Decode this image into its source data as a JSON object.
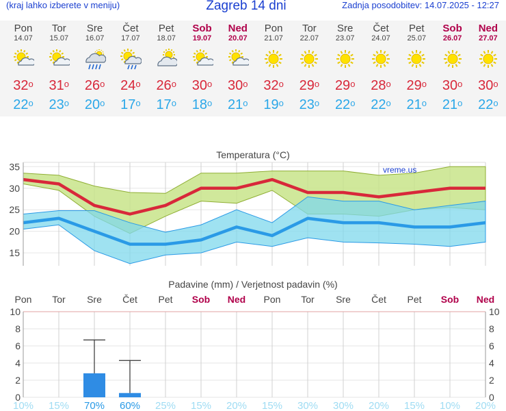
{
  "header": {
    "menu_hint": "(kraj lahko izberete v meniju)",
    "title": "Zagreb 14 dni",
    "last_update": "Zadnja posodobitev: 14.07.2025 - 12:27"
  },
  "days": [
    {
      "name": "Pon",
      "date": "14.07",
      "weekend": false,
      "icon": "sun-cloud-icon",
      "tmax": "32",
      "tmin": "22"
    },
    {
      "name": "Tor",
      "date": "15.07",
      "weekend": false,
      "icon": "sun-cloud-icon",
      "tmax": "31",
      "tmin": "23"
    },
    {
      "name": "Sre",
      "date": "16.07",
      "weekend": false,
      "icon": "rain-cloud-icon",
      "tmax": "26",
      "tmin": "20"
    },
    {
      "name": "Čet",
      "date": "17.07",
      "weekend": false,
      "icon": "sun-rain-cloud-icon",
      "tmax": "24",
      "tmin": "17"
    },
    {
      "name": "Pet",
      "date": "18.07",
      "weekend": false,
      "icon": "cloud-sun-icon",
      "tmax": "26",
      "tmin": "17"
    },
    {
      "name": "Sob",
      "date": "19.07",
      "weekend": true,
      "icon": "sun-cloud-icon",
      "tmax": "30",
      "tmin": "18"
    },
    {
      "name": "Ned",
      "date": "20.07",
      "weekend": true,
      "icon": "sun-cloud-icon",
      "tmax": "30",
      "tmin": "21"
    },
    {
      "name": "Pon",
      "date": "21.07",
      "weekend": false,
      "icon": "sun-icon",
      "tmax": "32",
      "tmin": "19"
    },
    {
      "name": "Tor",
      "date": "22.07",
      "weekend": false,
      "icon": "sun-icon",
      "tmax": "29",
      "tmin": "23"
    },
    {
      "name": "Sre",
      "date": "23.07",
      "weekend": false,
      "icon": "sun-icon",
      "tmax": "29",
      "tmin": "22"
    },
    {
      "name": "Čet",
      "date": "24.07",
      "weekend": false,
      "icon": "sun-icon",
      "tmax": "28",
      "tmin": "22"
    },
    {
      "name": "Pet",
      "date": "25.07",
      "weekend": false,
      "icon": "sun-icon",
      "tmax": "29",
      "tmin": "21"
    },
    {
      "name": "Sob",
      "date": "26.07",
      "weekend": true,
      "icon": "sun-icon",
      "tmax": "30",
      "tmin": "21"
    },
    {
      "name": "Ned",
      "date": "27.07",
      "weekend": true,
      "icon": "sun-icon",
      "tmax": "30",
      "tmin": "22"
    }
  ],
  "colors": {
    "weekend": "#b0004a",
    "tmax_line": "#d8283a",
    "tmin_line": "#2a9ae6",
    "max_band": "#c8e48a",
    "min_band": "#7fd8ec",
    "overlap_band": "#6ecf78",
    "precip_bar": "#2f8ce4",
    "precip_text": "#2a9ae6",
    "precip_text_faint": "#9fdcf3"
  },
  "chart_data": [
    {
      "type": "line",
      "title": "Temperatura (°C)",
      "watermark": "vreme.us",
      "x": [
        "Pon",
        "Tor",
        "Sre",
        "Čet",
        "Pet",
        "Sob",
        "Ned",
        "Pon",
        "Tor",
        "Sre",
        "Čet",
        "Pet",
        "Sob",
        "Ned"
      ],
      "ylim": [
        12,
        36
      ],
      "yticks": [
        15,
        20,
        25,
        30,
        35
      ],
      "series": [
        {
          "key": "tmax",
          "values": [
            32,
            31,
            26,
            24,
            26,
            30,
            30,
            32,
            29,
            29,
            28,
            29,
            30,
            30
          ]
        },
        {
          "key": "tmin",
          "values": [
            22,
            23,
            20,
            17,
            17,
            18,
            21,
            19,
            23,
            22,
            22,
            21,
            21,
            22
          ]
        }
      ],
      "bands": {
        "max_upper": [
          33.5,
          33,
          30.5,
          29,
          28.8,
          33.5,
          33.5,
          34,
          34,
          34,
          33,
          33.5,
          35,
          35
        ],
        "max_lower": [
          31,
          29.5,
          23.5,
          19.5,
          23.5,
          27,
          26.5,
          29.5,
          24,
          24,
          23.5,
          25,
          25.5,
          25
        ],
        "min_upper": [
          24,
          24.8,
          24.8,
          22,
          19.8,
          21.5,
          25,
          22,
          28,
          27,
          27,
          25,
          26,
          27
        ],
        "min_lower": [
          20.5,
          21.5,
          15.5,
          12.5,
          14.5,
          15,
          17.5,
          16.5,
          18.5,
          17.5,
          17.3,
          17,
          16.5,
          17.5
        ]
      }
    },
    {
      "type": "bar",
      "title": "Padavine (mm) / Verjetnost padavin (%)",
      "categories": [
        "Pon",
        "Tor",
        "Sre",
        "Čet",
        "Pet",
        "Sob",
        "Ned",
        "Pon",
        "Tor",
        "Sre",
        "Čet",
        "Pet",
        "Sob",
        "Ned"
      ],
      "weekend": [
        false,
        false,
        false,
        false,
        false,
        true,
        true,
        false,
        false,
        false,
        false,
        false,
        true,
        true
      ],
      "values": [
        0,
        0,
        2.8,
        0.5,
        0,
        0,
        0,
        0,
        0,
        0,
        0,
        0,
        0,
        0
      ],
      "error_max": [
        null,
        null,
        6.7,
        4.3,
        null,
        null,
        null,
        null,
        null,
        null,
        null,
        null,
        null,
        null
      ],
      "probability": [
        "10%",
        "15%",
        "70%",
        "60%",
        "25%",
        "15%",
        "20%",
        "15%",
        "30%",
        "30%",
        "20%",
        "15%",
        "10%",
        "20%"
      ],
      "probability_strong": [
        false,
        false,
        true,
        true,
        false,
        false,
        false,
        false,
        false,
        false,
        false,
        false,
        false,
        false
      ],
      "ylim": [
        0,
        10
      ],
      "yticks": [
        0,
        2,
        4,
        6,
        8,
        10
      ]
    }
  ]
}
